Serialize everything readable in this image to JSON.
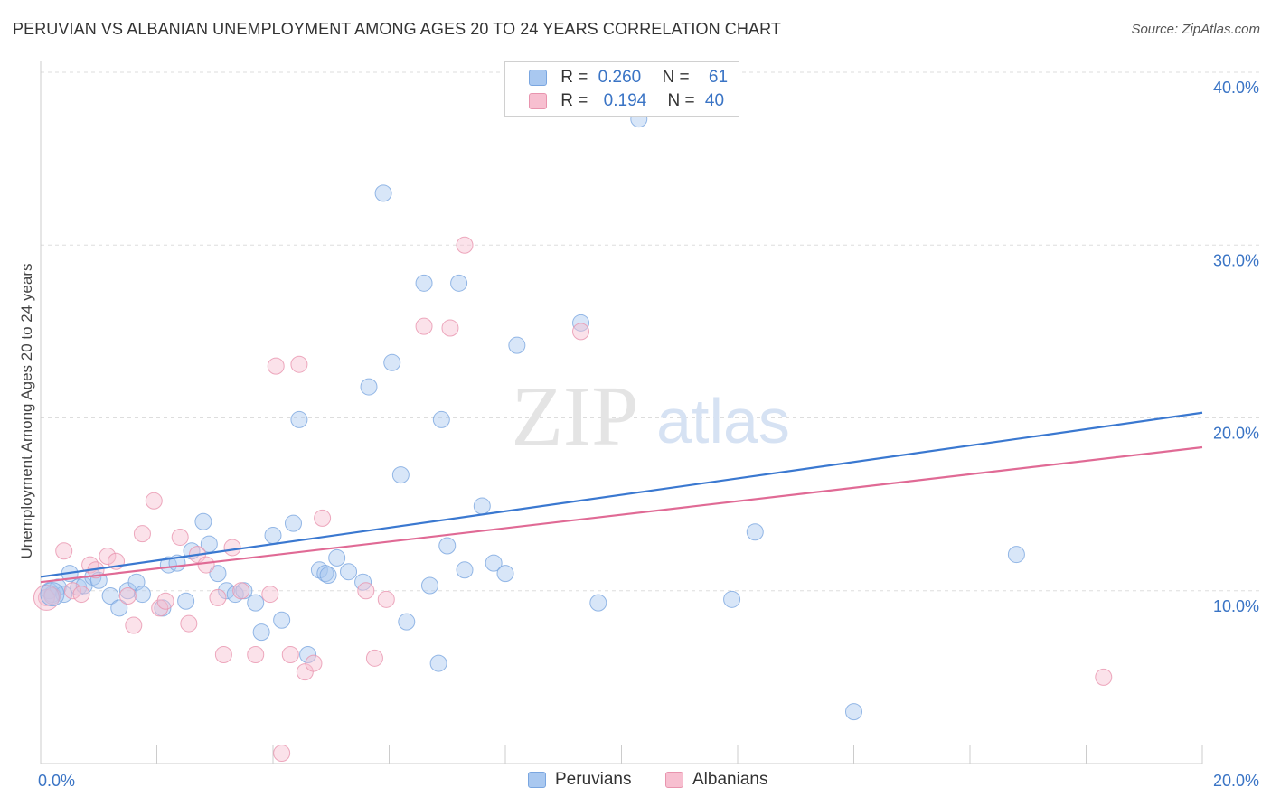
{
  "header": {
    "title": "PERUVIAN VS ALBANIAN UNEMPLOYMENT AMONG AGES 20 TO 24 YEARS CORRELATION CHART",
    "source": "Source: ZipAtlas.com"
  },
  "watermark": {
    "zip": "ZIP",
    "atlas": "atlas"
  },
  "legend": {
    "rows": [
      {
        "r_label": "R =",
        "r_value": "0.260",
        "n_label": "N =",
        "n_value": "61",
        "color": "#a9c8f0",
        "border": "#7aa6e0"
      },
      {
        "r_label": "R =",
        "r_value": "0.194",
        "n_label": "N =",
        "n_value": "40",
        "color": "#f7bfd0",
        "border": "#e894ae"
      }
    ]
  },
  "colors": {
    "peruvians_fill": "#a9c8f0",
    "peruvians_stroke": "#7aa6e0",
    "peruvians_line": "#3a78d0",
    "albanians_fill": "#f7bfd0",
    "albanians_stroke": "#e894ae",
    "albanians_line": "#e06a95",
    "tick_label": "#3a74c5",
    "grid": "#dddddd"
  },
  "chart_data": {
    "type": "scatter",
    "title": "PERUVIAN VS ALBANIAN UNEMPLOYMENT AMONG AGES 20 TO 24 YEARS CORRELATION CHART",
    "xlabel": "",
    "ylabel": "Unemployment Among Ages 20 to 24 years",
    "xlim": [
      0,
      20
    ],
    "ylim": [
      0,
      40
    ],
    "x_tick_labels": [
      {
        "value": 0,
        "label": "0.0%"
      },
      {
        "value": 20,
        "label": "20.0%"
      }
    ],
    "y_tick_labels": [
      {
        "value": 10,
        "label": "10.0%"
      },
      {
        "value": 20,
        "label": "20.0%"
      },
      {
        "value": 30,
        "label": "30.0%"
      },
      {
        "value": 40,
        "label": "40.0%"
      }
    ],
    "grid": true,
    "legend_position": "bottom-center",
    "series": [
      {
        "name": "Peruvians",
        "r": 0.26,
        "n": 61,
        "trend": [
          [
            0,
            10.8
          ],
          [
            20,
            20.3
          ]
        ],
        "points": [
          [
            0.15,
            10.0
          ],
          [
            0.2,
            9.8
          ],
          [
            0.3,
            10.2
          ],
          [
            0.5,
            11.0
          ],
          [
            0.65,
            10.2
          ],
          [
            0.75,
            10.3
          ],
          [
            0.9,
            10.8
          ],
          [
            1.0,
            10.6
          ],
          [
            1.2,
            9.7
          ],
          [
            1.35,
            9.0
          ],
          [
            1.5,
            10.0
          ],
          [
            1.65,
            10.5
          ],
          [
            1.75,
            9.8
          ],
          [
            2.1,
            9.0
          ],
          [
            2.2,
            11.5
          ],
          [
            2.35,
            11.6
          ],
          [
            2.5,
            9.4
          ],
          [
            2.6,
            12.3
          ],
          [
            2.8,
            14.0
          ],
          [
            2.9,
            12.7
          ],
          [
            3.05,
            11.0
          ],
          [
            3.2,
            10.0
          ],
          [
            3.35,
            9.8
          ],
          [
            3.5,
            10.0
          ],
          [
            3.7,
            9.3
          ],
          [
            3.8,
            7.6
          ],
          [
            4.0,
            13.2
          ],
          [
            4.15,
            8.3
          ],
          [
            4.35,
            13.9
          ],
          [
            4.45,
            19.9
          ],
          [
            4.6,
            6.3
          ],
          [
            4.8,
            11.2
          ],
          [
            4.9,
            11.0
          ],
          [
            4.95,
            10.9
          ],
          [
            5.1,
            11.9
          ],
          [
            5.3,
            11.1
          ],
          [
            5.55,
            10.5
          ],
          [
            5.65,
            21.8
          ],
          [
            5.9,
            33.0
          ],
          [
            6.05,
            23.2
          ],
          [
            6.2,
            16.7
          ],
          [
            6.3,
            8.2
          ],
          [
            6.6,
            27.8
          ],
          [
            6.7,
            10.3
          ],
          [
            6.85,
            5.8
          ],
          [
            6.9,
            19.9
          ],
          [
            7.0,
            12.6
          ],
          [
            7.2,
            27.8
          ],
          [
            7.3,
            11.2
          ],
          [
            7.6,
            14.9
          ],
          [
            7.8,
            11.6
          ],
          [
            8.0,
            11.0
          ],
          [
            8.2,
            24.2
          ],
          [
            9.3,
            25.5
          ],
          [
            9.6,
            9.3
          ],
          [
            10.3,
            37.3
          ],
          [
            11.9,
            9.5
          ],
          [
            12.3,
            13.4
          ],
          [
            14.0,
            3.0
          ],
          [
            16.8,
            12.1
          ],
          [
            0.4,
            9.8
          ]
        ]
      },
      {
        "name": "Albanians",
        "r": 0.194,
        "n": 40,
        "trend": [
          [
            0,
            10.5
          ],
          [
            20,
            18.3
          ]
        ],
        "points": [
          [
            0.1,
            9.6
          ],
          [
            0.2,
            9.7
          ],
          [
            0.4,
            12.3
          ],
          [
            0.55,
            10.0
          ],
          [
            0.7,
            9.8
          ],
          [
            0.85,
            11.5
          ],
          [
            0.95,
            11.2
          ],
          [
            1.15,
            12.0
          ],
          [
            1.3,
            11.7
          ],
          [
            1.5,
            9.7
          ],
          [
            1.6,
            8.0
          ],
          [
            1.75,
            13.3
          ],
          [
            1.95,
            15.2
          ],
          [
            2.05,
            9.0
          ],
          [
            2.15,
            9.4
          ],
          [
            2.4,
            13.1
          ],
          [
            2.55,
            8.1
          ],
          [
            2.7,
            12.1
          ],
          [
            2.85,
            11.5
          ],
          [
            3.05,
            9.6
          ],
          [
            3.15,
            6.3
          ],
          [
            3.3,
            12.5
          ],
          [
            3.45,
            10.0
          ],
          [
            3.7,
            6.3
          ],
          [
            3.95,
            9.8
          ],
          [
            4.05,
            23.0
          ],
          [
            4.15,
            0.6
          ],
          [
            4.3,
            6.3
          ],
          [
            4.45,
            23.1
          ],
          [
            4.55,
            5.3
          ],
          [
            4.7,
            5.8
          ],
          [
            4.85,
            14.2
          ],
          [
            5.6,
            10.0
          ],
          [
            5.75,
            6.1
          ],
          [
            6.6,
            25.3
          ],
          [
            7.05,
            25.2
          ],
          [
            7.3,
            30.0
          ],
          [
            9.3,
            25.0
          ],
          [
            18.3,
            5.0
          ],
          [
            5.95,
            9.5
          ]
        ]
      }
    ]
  }
}
